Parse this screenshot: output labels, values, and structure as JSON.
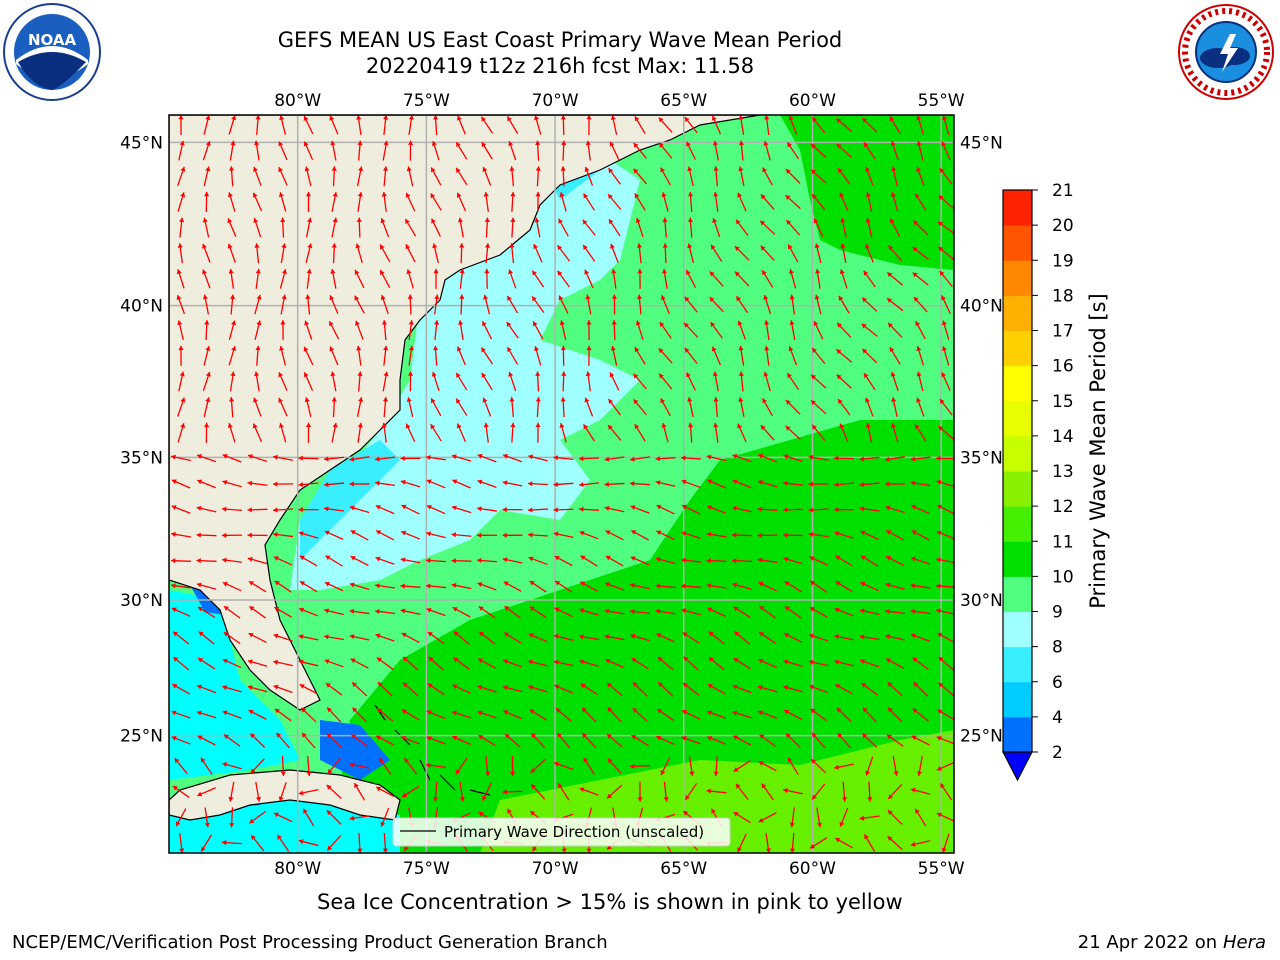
{
  "title": {
    "line1": "GEFS MEAN US East Coast Primary Wave Mean Period",
    "line2": "20220419 t12z 216h fcst   Max: 11.58"
  },
  "logos": {
    "noaa": {
      "text": "NOAA",
      "ring_text": "NATIONAL OCEANIC AND ATMOSPHERIC ADMINISTRATION · U.S. DEPARTMENT OF COMMERCE"
    },
    "nws": {
      "ring_text": "NATIONAL WEATHER SERVICE"
    }
  },
  "map": {
    "lon_range": [
      -85,
      -54.5
    ],
    "lat_range": [
      20.5,
      45.8
    ],
    "lon_ticks": [
      {
        "value": -80,
        "label": "80°W"
      },
      {
        "value": -75,
        "label": "75°W"
      },
      {
        "value": -70,
        "label": "70°W"
      },
      {
        "value": -65,
        "label": "65°W"
      },
      {
        "value": -60,
        "label": "60°W"
      },
      {
        "value": -55,
        "label": "55°W"
      }
    ],
    "lat_ticks": [
      {
        "value": 45,
        "label": "45°N"
      },
      {
        "value": 40,
        "label": "40°N"
      },
      {
        "value": 35,
        "label": "35°N"
      },
      {
        "value": 30,
        "label": "30°N"
      },
      {
        "value": 25,
        "label": "25°N"
      }
    ],
    "gridlines": true,
    "land_color": "#efedde",
    "arrow_color": "#ff0000",
    "legend": {
      "label": "Primary Wave Direction (unscaled)",
      "placement": "bottom-center"
    }
  },
  "colorbar": {
    "label": "Primary Wave Mean Period [s]",
    "ticks": [
      "2",
      "4",
      "6",
      "8",
      "9",
      "10",
      "11",
      "12",
      "13",
      "14",
      "15",
      "16",
      "17",
      "18",
      "19",
      "20",
      "21"
    ],
    "colors": [
      "#0070ff",
      "#00ccff",
      "#38eeff",
      "#a0ffff",
      "#50ff80",
      "#00e000",
      "#44f000",
      "#88f000",
      "#c8ff00",
      "#e8ff00",
      "#ffff00",
      "#ffd000",
      "#ffb000",
      "#ff8800",
      "#ff5500",
      "#ff2200"
    ],
    "under_color": "#0000ff"
  },
  "subtitle": "Sea Ice Concentration > 15% is shown in pink to yellow",
  "footer": {
    "left": "NCEP/EMC/Verification Post Processing Product Generation Branch",
    "date": "21 Apr 2022 on ",
    "machine": "Hera"
  }
}
